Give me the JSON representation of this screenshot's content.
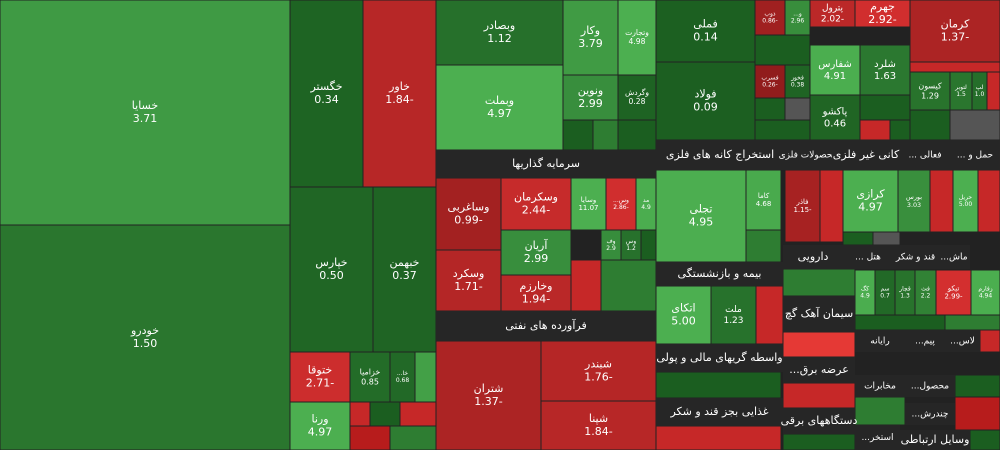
{
  "chart_data": {
    "type": "treemap",
    "categories": [
      "خسایا",
      "خودرو",
      "خگستر",
      "خاور",
      "خپارس",
      "خبهمن",
      "ختوقا",
      "خزامیا",
      "خا...",
      "ورنا",
      "وبصادر",
      "وبملت",
      "وکار",
      "وتجارت",
      "ونوین",
      "وگردش",
      "وساغربی",
      "وسکرمان",
      "وسایا",
      "وس...",
      "مد",
      "آریان",
      "وسکرد",
      "وخارزم",
      "وف",
      "وس",
      "شتران",
      "شبندر",
      "شپنا",
      "فملی",
      "فولاد",
      "ذوب",
      "و...",
      "فسرب",
      "فخوز",
      "پترول",
      "جهرم",
      "کرمان",
      "شفارس",
      "شلرد",
      "پاکشو",
      "کیسون",
      "لتوبر",
      "لپ",
      "تجلی",
      "کاما",
      "فاذر",
      "کرازی",
      "بورس",
      "حریل",
      "اتکای",
      "ملت",
      "کگ",
      "سم",
      "قچار",
      "فث",
      "تیکو",
      "زفارم"
    ],
    "values": [
      3.71,
      1.5,
      0.34,
      -1.84,
      0.5,
      0.37,
      -2.71,
      0.85,
      0.68,
      4.97,
      1.12,
      4.97,
      3.79,
      4.98,
      2.99,
      0.28,
      -0.99,
      -2.44,
      11.07,
      -2.86,
      4.9,
      2.99,
      -1.71,
      -1.94,
      2.9,
      1.2,
      -1.37,
      -1.76,
      -1.84,
      0.14,
      0.09,
      -0.86,
      2.96,
      -0.26,
      0.38,
      -2.02,
      -2.92,
      -1.37,
      4.91,
      1.63,
      0.46,
      1.29,
      1.5,
      1.0,
      4.95,
      4.68,
      -1.15,
      4.97,
      3.03,
      5.0,
      5.0,
      1.23,
      4.9,
      0.7,
      1.3,
      2.2,
      -2.99,
      4.94
    ],
    "value_labels": [
      "3.71",
      "1.50",
      "0.34",
      "-1.84",
      "0.50",
      "0.37",
      "-2.71",
      "0.85",
      "0.68",
      "4.97",
      "1.12",
      "4.97",
      "3.79",
      "4.98",
      "2.99",
      "0.28",
      "-0.99",
      "-2.44",
      "11.07",
      "-2.86",
      "4.9",
      "2.99",
      "-1.71",
      "-1.94",
      "2.9",
      "1.2",
      "-1.37",
      "-1.76",
      "-1.84",
      "0.14",
      "0.09",
      "-0.86",
      "2.96",
      "-0.26",
      "0.38",
      "-2.02",
      "-2.92",
      "-1.37",
      "4.91",
      "1.63",
      "0.46",
      "1.29",
      "1.5",
      "1.0",
      "4.95",
      "4.68",
      "-1.15",
      "4.97",
      "3.03",
      "5.00",
      "5.00",
      "1.23",
      "4.9",
      "0.7",
      "1.3",
      "2.2",
      "-2.99",
      "4.94"
    ],
    "sectors": [
      "سرمایه گذاریها",
      "فرآورده های نفتی",
      "استخراج کانه های فلزی",
      "محصولات فلزی",
      "کانی غیر فلزی",
      "فعالی ...",
      "حمل و ...",
      "بیمه و بازنشستگی",
      "دارویی",
      "هتل ...",
      "قند و شکر",
      "ماش...",
      "سیمان آهک گچ",
      "رایانه",
      "پیم...",
      "لاس...",
      "واسطه گریهای مالی و پولی",
      "عرضه برق...",
      "مخابرات",
      "محصول...",
      "غذایی بجز قند و شکر",
      "دستگاههای برقی",
      "چندرش...",
      "استخر...",
      "وسایل ارتباطی"
    ]
  }
}
